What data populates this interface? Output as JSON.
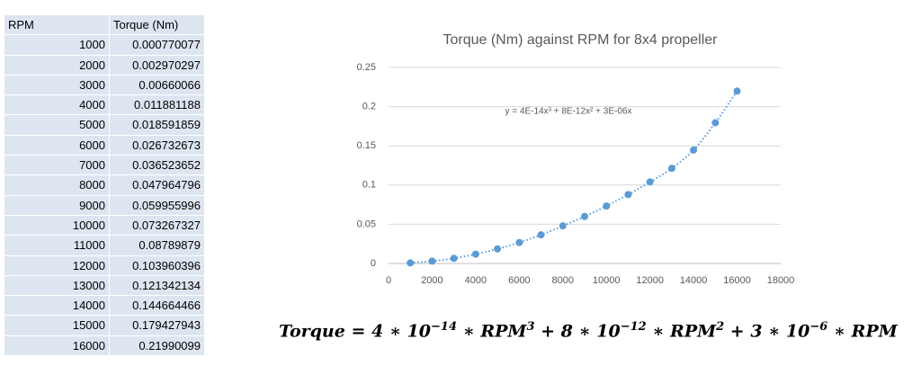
{
  "table": {
    "header": [
      "RPM",
      "Torque (Nm)"
    ],
    "rows": [
      [
        1000,
        0.000770077
      ],
      [
        2000,
        0.002970297
      ],
      [
        3000,
        0.00660066
      ],
      [
        4000,
        0.011881188
      ],
      [
        5000,
        0.018591859
      ],
      [
        6000,
        0.026732673
      ],
      [
        7000,
        0.036523652
      ],
      [
        8000,
        0.047964796
      ],
      [
        9000,
        0.059955996
      ],
      [
        10000,
        0.073267327
      ],
      [
        11000,
        0.08789879
      ],
      [
        12000,
        0.103960396
      ],
      [
        13000,
        0.121342134
      ],
      [
        14000,
        0.144664466
      ],
      [
        15000,
        0.179427943
      ],
      [
        16000,
        0.21990099
      ]
    ]
  },
  "chart_data": {
    "type": "scatter",
    "title": "Torque (Nm) against RPM for 8x4 propeller",
    "x": [
      1000,
      2000,
      3000,
      4000,
      5000,
      6000,
      7000,
      8000,
      9000,
      10000,
      11000,
      12000,
      13000,
      14000,
      15000,
      16000
    ],
    "values": [
      0.000770077,
      0.002970297,
      0.00660066,
      0.011881188,
      0.018591859,
      0.026732673,
      0.036523652,
      0.047964796,
      0.059955996,
      0.073267327,
      0.08789879,
      0.103960396,
      0.121342134,
      0.144664466,
      0.179427943,
      0.21990099
    ],
    "color": "#5b9bd5",
    "trendline_label": "y = 4E-14x³ + 8E-12x² + 3E-06x",
    "xlim": [
      0,
      18000
    ],
    "xticks": [
      0,
      2000,
      4000,
      6000,
      8000,
      10000,
      12000,
      14000,
      16000,
      18000
    ],
    "ylim": [
      0,
      0.25
    ],
    "yticks": [
      0,
      0.05,
      0.1,
      0.15,
      0.2,
      0.25
    ],
    "grid": true
  },
  "equation": {
    "parts": [
      {
        "text": "Torque",
        "sup": false
      },
      {
        "text": " = 4 ∗ 10",
        "sup": false
      },
      {
        "text": "−14",
        "sup": true
      },
      {
        "text": " ∗ RPM",
        "sup": false
      },
      {
        "text": "3",
        "sup": true
      },
      {
        "text": " + 8 ∗ 10",
        "sup": false
      },
      {
        "text": "−12",
        "sup": true
      },
      {
        "text": " ∗ RPM",
        "sup": false
      },
      {
        "text": "2",
        "sup": true
      },
      {
        "text": " + 3 ∗ 10",
        "sup": false
      },
      {
        "text": "−6",
        "sup": true
      },
      {
        "text": " ∗ RPM",
        "sup": false
      }
    ]
  }
}
